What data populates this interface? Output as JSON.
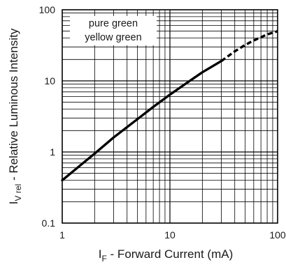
{
  "chart_data": {
    "type": "line",
    "x_scale": "log",
    "y_scale": "log",
    "xlim": [
      1,
      100
    ],
    "ylim": [
      0.1,
      100
    ],
    "grid": true,
    "x_ticks": [
      "1",
      "10",
      "100"
    ],
    "y_ticks": [
      "0.1",
      "1",
      "10",
      "100"
    ],
    "xlabel": {
      "main": "I",
      "sub": "F",
      "rest": " - Forward Current (mA)"
    },
    "ylabel": {
      "main": "I",
      "sub": "V rel",
      "rest": " - Relative Luminous Intensity"
    },
    "legend_placement": "top-left",
    "legend_entries": [
      "pure green",
      "yellow green"
    ],
    "series": [
      {
        "solid": {
          "x": [
            1,
            2,
            3,
            5,
            7,
            10,
            15,
            20,
            30
          ],
          "y": [
            0.4,
            0.95,
            1.6,
            2.9,
            4.3,
            6.4,
            9.8,
            13.2,
            19
          ]
        },
        "dashed": {
          "x": [
            30,
            40,
            50,
            60,
            70,
            80,
            100
          ],
          "y": [
            19,
            26,
            32,
            37,
            41,
            45,
            50
          ]
        }
      }
    ]
  }
}
